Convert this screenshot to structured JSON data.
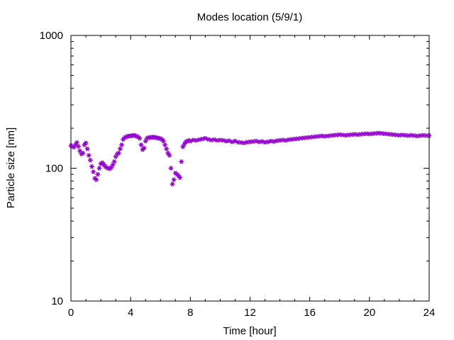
{
  "chart_data": {
    "type": "scatter",
    "title": "Modes location (5/9/1)",
    "xlabel": "Time [hour]",
    "ylabel": "Particle size [nm]",
    "xlim": [
      0,
      24
    ],
    "ylim": [
      10,
      1000
    ],
    "yscale": "log",
    "xticks": [
      "0",
      "4",
      "8",
      "12",
      "16",
      "20",
      "24"
    ],
    "xtick_values": [
      0,
      4,
      8,
      12,
      16,
      20,
      24
    ],
    "yticks": [
      "10",
      "100",
      "1000"
    ],
    "ytick_values": [
      10,
      100,
      1000
    ],
    "grid": false,
    "marker_color": "#9400d3",
    "series": [
      {
        "x": [
          0.0,
          0.1,
          0.2,
          0.3,
          0.4,
          0.5,
          0.6,
          0.7,
          0.8,
          0.9,
          1.0,
          1.1,
          1.2,
          1.3,
          1.4,
          1.5,
          1.6,
          1.7,
          1.8,
          1.9,
          2.0,
          2.1,
          2.2,
          2.3,
          2.4,
          2.5,
          2.6,
          2.7,
          2.8,
          2.9,
          3.0,
          3.1,
          3.2,
          3.3,
          3.4,
          3.5,
          3.6,
          3.7,
          3.8,
          3.9,
          4.0,
          4.1,
          4.2,
          4.3,
          4.4,
          4.5,
          4.6,
          4.7,
          4.8,
          4.9,
          5.0,
          5.1,
          5.2,
          5.3,
          5.4,
          5.5,
          5.6,
          5.7,
          5.8,
          5.9,
          6.0,
          6.1,
          6.2,
          6.3,
          6.4,
          6.5,
          6.6,
          6.7,
          6.8,
          6.9,
          7.0,
          7.1,
          7.2,
          7.3,
          7.4,
          7.5,
          7.6,
          7.7,
          7.8,
          7.9,
          8.0,
          8.2,
          8.4,
          8.6,
          8.8,
          9.0,
          9.2,
          9.4,
          9.6,
          9.8,
          10.0,
          10.2,
          10.4,
          10.6,
          10.8,
          11.0,
          11.2,
          11.4,
          11.6,
          11.8,
          12.0,
          12.2,
          12.4,
          12.6,
          12.8,
          13.0,
          13.2,
          13.4,
          13.6,
          13.8,
          14.0,
          14.2,
          14.4,
          14.6,
          14.8,
          15.0,
          15.2,
          15.4,
          15.6,
          15.8,
          16.0,
          16.2,
          16.4,
          16.6,
          16.8,
          17.0,
          17.2,
          17.4,
          17.6,
          17.8,
          18.0,
          18.2,
          18.4,
          18.6,
          18.8,
          19.0,
          19.2,
          19.4,
          19.6,
          19.8,
          20.0,
          20.2,
          20.4,
          20.6,
          20.8,
          21.0,
          21.2,
          21.4,
          21.6,
          21.8,
          22.0,
          22.2,
          22.4,
          22.6,
          22.8,
          23.0,
          23.2,
          23.4,
          23.6,
          23.8,
          24.0
        ],
        "y": [
          148,
          146,
          144,
          150,
          156,
          146,
          135,
          128,
          130,
          150,
          155,
          140,
          125,
          115,
          103,
          94,
          84,
          82,
          90,
          100,
          108,
          110,
          107,
          103,
          101,
          100,
          99,
          101,
          106,
          112,
          122,
          128,
          130,
          140,
          150,
          165,
          170,
          172,
          174,
          175,
          175,
          176,
          177,
          176,
          174,
          172,
          168,
          150,
          138,
          142,
          160,
          168,
          170,
          171,
          170,
          172,
          171,
          170,
          169,
          168,
          167,
          165,
          160,
          150,
          140,
          130,
          125,
          100,
          76,
          82,
          92,
          90,
          88,
          85,
          112,
          145,
          152,
          158,
          160,
          162,
          160,
          163,
          162,
          164,
          166,
          168,
          165,
          163,
          164,
          162,
          163,
          162,
          160,
          161,
          158,
          160,
          157,
          156,
          155,
          157,
          158,
          159,
          160,
          158,
          159,
          157,
          158,
          160,
          159,
          161,
          162,
          163,
          162,
          164,
          165,
          166,
          167,
          168,
          169,
          170,
          171,
          172,
          173,
          174,
          175,
          174,
          175,
          176,
          177,
          178,
          179,
          178,
          177,
          178,
          179,
          180,
          179,
          180,
          181,
          182,
          181,
          182,
          183,
          184,
          183,
          182,
          181,
          180,
          179,
          178,
          177,
          178,
          177,
          176,
          177,
          176,
          175,
          176,
          177,
          176,
          176
        ]
      }
    ]
  }
}
